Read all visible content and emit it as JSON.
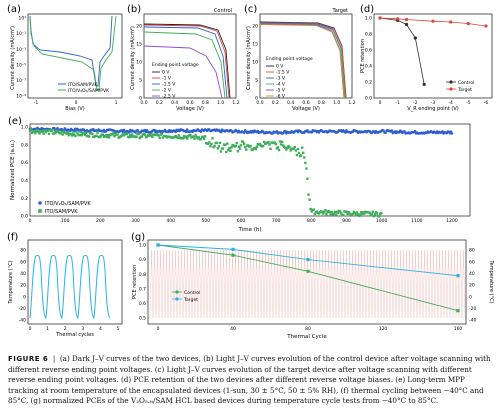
{
  "panels": {
    "a": {
      "label": "(a)",
      "xlabel": "Bias (V)",
      "ylabel": "Current density (mA/cm²)",
      "xticks": [
        "-1",
        "0",
        "1"
      ],
      "yticks": [
        "10¹",
        "10⁻¹",
        "10⁻³",
        "10⁻⁵",
        "10⁻⁷",
        "10⁻⁹"
      ],
      "legend": [
        "ITO/SAM/PVK",
        "ITO/V₂O₅/SAM/PVK"
      ]
    },
    "b": {
      "label": "(b)",
      "corner": "Control",
      "xlabel": "Voltage (V)",
      "ylabel": "Current density (mA/cm²)",
      "xticks": [
        "0.0",
        "0.2",
        "0.4",
        "0.6",
        "0.8",
        "1.0",
        "1.2"
      ],
      "yticks": [
        "0",
        "5",
        "10",
        "15",
        "20"
      ],
      "legend_title": "Ending point voltage",
      "legend": [
        "0 V",
        "-1 V",
        "-1.5 V",
        "-2 V",
        "-2.5 V"
      ]
    },
    "c": {
      "label": "(c)",
      "corner": "Target",
      "xlabel": "Voltage (V)",
      "ylabel": "Current density (mA/cm²)",
      "xticks": [
        "0.0",
        "0.2",
        "0.4",
        "0.6",
        "0.8",
        "1.0",
        "1.2"
      ],
      "yticks": [
        "0",
        "5",
        "10",
        "15",
        "20"
      ],
      "legend_title": "Ending point voltage",
      "legend": [
        "0 V",
        "-1.5 V",
        "-3 V",
        "-4 V",
        "-5 V",
        "-6 V"
      ]
    },
    "d": {
      "label": "(d)",
      "xlabel": "V_R ending point (V)",
      "ylabel": "PCE retention",
      "xticks": [
        "0",
        "-1",
        "-2",
        "-3",
        "-4",
        "-5",
        "-6"
      ],
      "yticks": [
        "0.0",
        "0.2",
        "0.4",
        "0.6",
        "0.8",
        "1.0"
      ],
      "legend": [
        "Control",
        "Target"
      ]
    },
    "e": {
      "label": "(e)",
      "xlabel": "Time (h)",
      "ylabel": "Normalized PCE (a.u.)",
      "xticks": [
        "0",
        "100",
        "200",
        "300",
        "400",
        "500",
        "600",
        "700",
        "800",
        "900",
        "1000",
        "1100",
        "1200"
      ],
      "yticks": [
        "0.0",
        "0.2",
        "0.4",
        "0.6",
        "0.8",
        "1.0"
      ],
      "legend": [
        "ITO/V₂O₅/SAM/PVK",
        "ITO/SAM/PVK"
      ]
    },
    "f": {
      "label": "(f)",
      "xlabel": "Thermal cycles",
      "ylabel": "Temperature (°C)",
      "xticks": [
        "0",
        "1",
        "2",
        "3",
        "4",
        "5"
      ],
      "yticks": [
        "-40",
        "-20",
        "0",
        "20",
        "40",
        "60",
        "80"
      ]
    },
    "g": {
      "label": "(g)",
      "xlabel": "Thermal Cycle",
      "ylabel": "PCE retention",
      "ylabel_right": "Temperature (°C)",
      "xticks": [
        "0",
        "40",
        "80",
        "120",
        "160"
      ],
      "yticks": [
        "0.5",
        "0.6",
        "0.7",
        "0.8",
        "0.9",
        "1.0"
      ],
      "yticks_right": [
        "-40",
        "-20",
        "0",
        "20",
        "40",
        "60",
        "80"
      ],
      "legend": [
        "Control",
        "Target"
      ]
    }
  },
  "caption": {
    "figure": "FIGURE 6",
    "text": "(a) Dark J–V curves of the two devices, (b) Light J–V curves evolution of the control device after voltage scanning with different reverse ending point voltages. (c) Light J–V curves evolution of the target device after voltage scanning with different reverse ending point voltages. (d) PCE retention of the two devices after different reverse voltage biases. (e) Long-term MPP tracking at room temperature of the encapsulated devices (1-sun, 30 ± 5°C, 50 ± 5% RH), (f) thermal cycling between −40°C and 85°C, (g) normalized PCEs of the V₂O₅.₈/SAM HCL based devices during temperature cycle tests from −40°C to 85°C."
  },
  "colors": {
    "control": "#2f2f2f",
    "target": "#e0453a",
    "blue": "#2f5fd0",
    "green": "#3fae5a",
    "cyan": "#2bb3e0",
    "frame_teal": "#2a7f8f"
  },
  "chart_data": [
    {
      "panel": "d",
      "type": "line",
      "x": [
        0,
        -1,
        -1.5,
        -2,
        -2.5,
        -3,
        -4,
        -5,
        -6
      ],
      "series": [
        {
          "name": "Control",
          "x": [
            0,
            -1,
            -1.5,
            -2,
            -2.5
          ],
          "values": [
            1.0,
            0.97,
            0.92,
            0.75,
            0.17
          ]
        },
        {
          "name": "Target",
          "x": [
            0,
            -1,
            -1.5,
            -3,
            -4,
            -5,
            -6
          ],
          "values": [
            1.0,
            0.99,
            0.98,
            0.96,
            0.95,
            0.93,
            0.9
          ]
        }
      ],
      "ylim": [
        0,
        1.05
      ]
    },
    {
      "panel": "g",
      "type": "line",
      "series": [
        {
          "name": "Control",
          "x": [
            0,
            40,
            80,
            160
          ],
          "values": [
            1.0,
            0.93,
            0.82,
            0.55
          ]
        },
        {
          "name": "Target",
          "x": [
            0,
            40,
            80,
            160
          ],
          "values": [
            1.0,
            0.97,
            0.9,
            0.79
          ]
        }
      ],
      "ylim": [
        0.5,
        1.0
      ]
    },
    {
      "panel": "e",
      "type": "scatter",
      "series": [
        {
          "name": "ITO/V₂O₅/SAM/PVK",
          "x": [
            0,
            100,
            200,
            300,
            400,
            500,
            600,
            700,
            800,
            900,
            1000,
            1100,
            1200
          ],
          "values": [
            0.98,
            0.97,
            0.96,
            0.95,
            0.96,
            0.96,
            0.95,
            0.94,
            0.95,
            0.95,
            0.95,
            0.94,
            0.94
          ]
        },
        {
          "name": "ITO/SAM/PVK",
          "x": [
            0,
            100,
            200,
            300,
            400,
            500,
            550,
            600,
            700,
            780,
            800,
            900,
            1000
          ],
          "values": [
            0.96,
            0.93,
            0.91,
            0.9,
            0.9,
            0.88,
            0.8,
            0.82,
            0.84,
            0.75,
            0.05,
            0.03,
            0.02
          ]
        }
      ],
      "ylim": [
        0,
        1.05
      ],
      "xlim": [
        0,
        1250
      ]
    }
  ]
}
